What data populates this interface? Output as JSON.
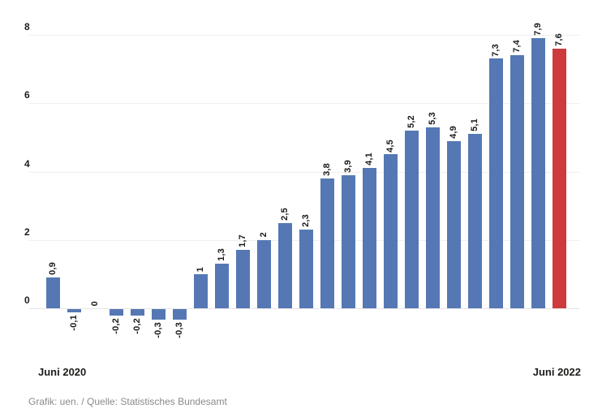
{
  "chart_data": {
    "type": "bar",
    "title": "",
    "values": [
      0.9,
      -0.1,
      0,
      -0.2,
      -0.2,
      -0.3,
      -0.3,
      1,
      1.3,
      1.7,
      2,
      2.5,
      2.3,
      3.8,
      3.9,
      4.1,
      4.5,
      5.2,
      5.3,
      4.9,
      5.1,
      7.3,
      7.4,
      7.9,
      7.6
    ],
    "bar_labels": [
      "0,9",
      "-0,1",
      "0",
      "-0,2",
      "-0,2",
      "-0,3",
      "-0,3",
      "1",
      "1,3",
      "1,7",
      "2",
      "2,5",
      "2,3",
      "3,8",
      "3,9",
      "4,1",
      "4,5",
      "5,2",
      "5,3",
      "4,9",
      "5,1",
      "7,3",
      "7,4",
      "7,9",
      "7,6"
    ],
    "highlight_index": 24,
    "y_axis": {
      "ticks": [
        0,
        2,
        4,
        6,
        8
      ],
      "range": [
        -0.4,
        8.4
      ],
      "gridlines": true
    },
    "x_axis": {
      "start_label": "Juni 2020",
      "end_label": "Juni 2022"
    },
    "legend": "none",
    "decimal_separator": ",",
    "colors": {
      "bar": "#5578b4",
      "highlight_bar": "#cd3b3d",
      "gridline": "#efefef",
      "baseline": "#e6e6e6",
      "value_label_text": "#1a1a1a",
      "axis_text": "#1d1d1b",
      "footer_text": "#8a8a8a"
    }
  },
  "footer": {
    "credit": "Grafik: uen. / Quelle: Statistisches Bundesamt"
  }
}
